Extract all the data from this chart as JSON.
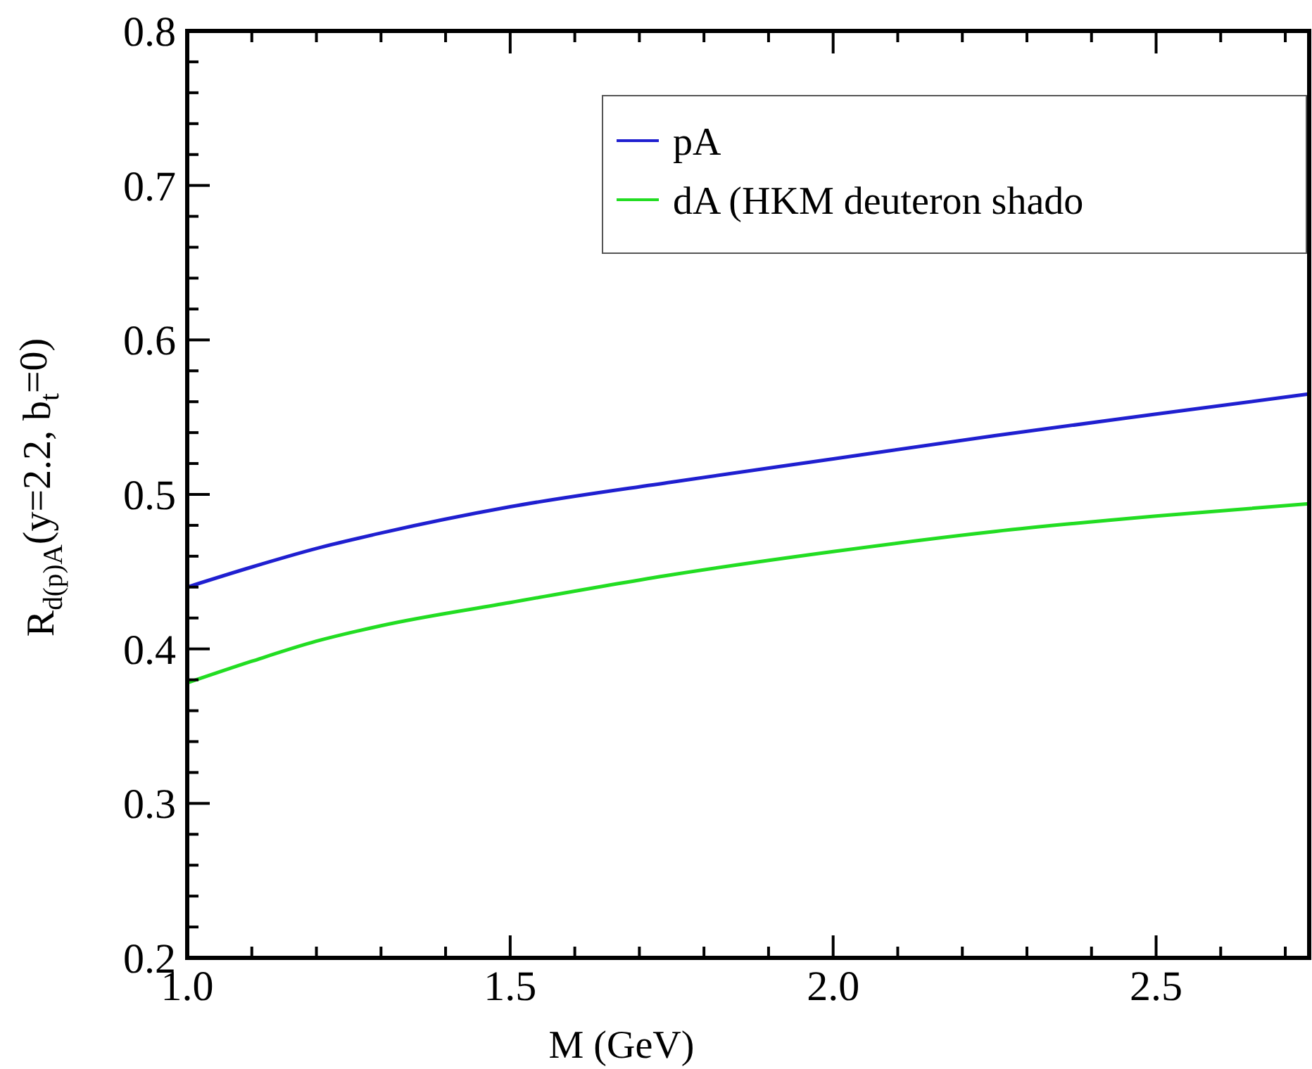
{
  "chart_data": {
    "type": "line",
    "xlabel": "M (GeV)",
    "ylabel": "R$_{d(p)A}$(y=2.2, b$_{t}$=0)",
    "xlim": [
      1.0,
      2.737
    ],
    "ylim": [
      0.2,
      0.8
    ],
    "xticks": [
      {
        "value": 1.0,
        "label": "1.0"
      },
      {
        "value": 1.1,
        "label": null
      },
      {
        "value": 1.2,
        "label": null
      },
      {
        "value": 1.3,
        "label": null
      },
      {
        "value": 1.4,
        "label": null
      },
      {
        "value": 1.5,
        "label": "1.5"
      },
      {
        "value": 1.6,
        "label": null
      },
      {
        "value": 1.7,
        "label": null
      },
      {
        "value": 1.8,
        "label": null
      },
      {
        "value": 1.9,
        "label": null
      },
      {
        "value": 2.0,
        "label": "2.0"
      },
      {
        "value": 2.1,
        "label": null
      },
      {
        "value": 2.2,
        "label": null
      },
      {
        "value": 2.3,
        "label": null
      },
      {
        "value": 2.4,
        "label": null
      },
      {
        "value": 2.5,
        "label": "2.5"
      },
      {
        "value": 2.6,
        "label": null
      },
      {
        "value": 2.7,
        "label": null
      }
    ],
    "yticks": [
      0.2,
      {
        "value": 0.22,
        "label": null
      },
      {
        "value": 0.24,
        "label": null
      },
      {
        "value": 0.26,
        "label": null
      },
      {
        "value": 0.28,
        "label": null
      },
      0.3,
      {
        "value": 0.32,
        "label": null
      },
      {
        "value": 0.34,
        "label": null
      },
      {
        "value": 0.36,
        "label": null
      },
      {
        "value": 0.38,
        "label": null
      },
      0.4,
      {
        "value": 0.42,
        "label": null
      },
      {
        "value": 0.44,
        "label": null
      },
      {
        "value": 0.46,
        "label": null
      },
      {
        "value": 0.48,
        "label": null
      },
      0.5,
      {
        "value": 0.52,
        "label": null
      },
      {
        "value": 0.54,
        "label": null
      },
      {
        "value": 0.56,
        "label": null
      },
      {
        "value": 0.58,
        "label": null
      },
      0.6,
      {
        "value": 0.62,
        "label": null
      },
      {
        "value": 0.64,
        "label": null
      },
      {
        "value": 0.66,
        "label": null
      },
      {
        "value": 0.68,
        "label": null
      },
      0.7,
      {
        "value": 0.72,
        "label": null
      },
      {
        "value": 0.74,
        "label": null
      },
      {
        "value": 0.76,
        "label": null
      },
      {
        "value": 0.78,
        "label": null
      },
      0.8
    ],
    "x": [
      1.0,
      1.1,
      1.2,
      1.3,
      1.5,
      1.75,
      2.0,
      2.25,
      2.5,
      2.737
    ],
    "legend": "top right",
    "grid": false,
    "line_style": "solid",
    "series": [
      {
        "name": "pA",
        "color": "#1f1fd0",
        "values": [
          0.44,
          0.453,
          0.465,
          0.475,
          0.492,
          0.508,
          0.523,
          0.538,
          0.552,
          0.565
        ]
      },
      {
        "name": "dA (HKM deuteron shado",
        "color": "#22dd22",
        "values": [
          0.378,
          0.392,
          0.405,
          0.415,
          0.43,
          0.448,
          0.463,
          0.476,
          0.486,
          0.494
        ]
      }
    ]
  }
}
